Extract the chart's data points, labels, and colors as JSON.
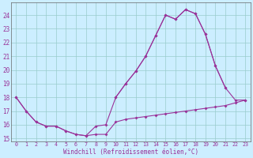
{
  "xlabel": "Windchill (Refroidissement éolien,°C)",
  "bg_color": "#cceeff",
  "grid_color": "#99cccc",
  "line_color": "#993399",
  "spine_color": "#666666",
  "xlim": [
    -0.5,
    23.5
  ],
  "ylim": [
    14.8,
    24.9
  ],
  "yticks": [
    15,
    16,
    17,
    18,
    19,
    20,
    21,
    22,
    23,
    24
  ],
  "xticks": [
    0,
    1,
    2,
    3,
    4,
    5,
    6,
    7,
    8,
    9,
    10,
    11,
    12,
    13,
    14,
    15,
    16,
    17,
    18,
    19,
    20,
    21,
    22,
    23
  ],
  "line1_x": [
    0,
    1,
    2,
    3,
    4,
    5,
    6,
    7,
    8,
    9,
    10,
    11,
    12,
    13,
    14,
    15,
    16,
    17,
    18,
    19,
    20,
    21,
    22,
    23
  ],
  "line1_y": [
    18.0,
    17.0,
    16.2,
    15.9,
    15.9,
    15.55,
    15.3,
    15.2,
    15.3,
    15.3,
    16.2,
    16.4,
    16.5,
    16.6,
    16.7,
    16.8,
    16.9,
    17.0,
    17.1,
    17.2,
    17.3,
    17.4,
    17.6,
    17.8
  ],
  "line2_x": [
    0,
    1,
    2,
    3,
    4,
    5,
    6,
    7,
    8,
    9,
    10,
    11,
    12,
    13,
    14,
    15,
    16,
    17,
    18,
    19,
    20,
    21
  ],
  "line2_y": [
    18.0,
    17.0,
    16.2,
    15.9,
    15.9,
    15.55,
    15.3,
    15.2,
    15.9,
    16.0,
    18.0,
    19.0,
    19.9,
    21.0,
    22.5,
    24.0,
    23.7,
    24.4,
    24.1,
    22.6,
    20.3,
    18.7
  ],
  "line3_x": [
    10,
    11,
    12,
    13,
    14,
    15,
    16,
    17,
    18,
    19,
    20,
    21,
    22,
    23
  ],
  "line3_y": [
    18.0,
    19.0,
    19.9,
    21.0,
    22.5,
    24.0,
    23.7,
    24.4,
    24.1,
    22.6,
    20.3,
    18.7,
    17.8,
    17.8
  ]
}
